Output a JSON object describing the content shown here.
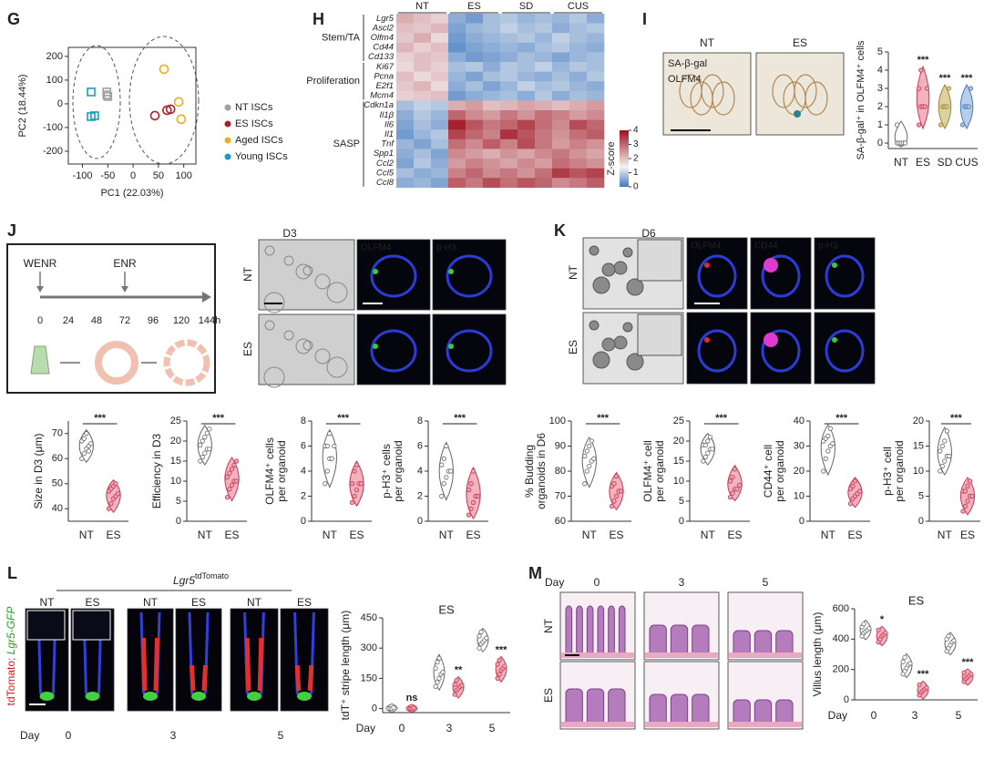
{
  "panel_labels": [
    "G",
    "H",
    "I",
    "J",
    "K",
    "L",
    "M"
  ],
  "pca": {
    "type": "scatter",
    "xlabel": "PC1 (22.03%)",
    "ylabel": "PC2 (18.44%)",
    "xlim": [
      -128,
      124
    ],
    "ylim": [
      -254,
      238
    ],
    "xticks": [
      -100,
      -50,
      0,
      50,
      100
    ],
    "yticks": [
      -200,
      -100,
      0,
      100,
      200
    ],
    "series": [
      {
        "name": "NT ISCs",
        "color": "#a0a0a0",
        "marker": "square",
        "x": [
          -52,
          -50,
          -52
        ],
        "y": [
          50,
          31,
          38
        ]
      },
      {
        "name": "ES ISCs",
        "color": "#b01e2e",
        "marker": "circle",
        "x": [
          43,
          67,
          74
        ],
        "y": [
          -50,
          -27,
          -23
        ]
      },
      {
        "name": "Aged ISCs",
        "color": "#e8b020",
        "marker": "circle",
        "x": [
          61,
          90,
          95
        ],
        "y": [
          146,
          8,
          -65
        ]
      },
      {
        "name": "Young ISCs",
        "color": "#1a9fc0",
        "marker": "square",
        "x": [
          -83,
          -83,
          -76
        ],
        "y": [
          50,
          -54,
          -50
        ]
      }
    ]
  },
  "heatmap": {
    "type": "heatmap",
    "columns": [
      "NT",
      "ES",
      "SD",
      "CUS"
    ],
    "groups": [
      {
        "name": "Stem/TA",
        "genes": [
          "Lgr5",
          "Ascl2",
          "Olfm4",
          "Cd44",
          "Cd133"
        ]
      },
      {
        "name": "Proliferation",
        "genes": [
          "Ki67",
          "Pcna",
          "E2f1",
          "Mcm4"
        ]
      },
      {
        "name": "SASP",
        "genes": [
          "Cdkn1a",
          "Il1β",
          "Il6",
          "Il1",
          "Tnf",
          "Spp1",
          "Ccl2",
          "Ccl5",
          "Ccl8"
        ]
      }
    ],
    "values": [
      [
        2.2,
        2.0,
        1.8,
        0.6,
        0.4,
        0.8,
        0.9,
        0.7,
        0.8,
        0.7,
        0.9,
        0.6
      ],
      [
        2.0,
        1.9,
        2.1,
        0.5,
        0.7,
        0.8,
        1.0,
        0.8,
        0.9,
        0.6,
        0.8,
        0.9
      ],
      [
        1.9,
        2.2,
        1.7,
        0.4,
        0.6,
        0.7,
        0.8,
        0.9,
        0.7,
        1.0,
        0.8,
        0.7
      ],
      [
        2.1,
        1.8,
        2.0,
        0.3,
        0.5,
        0.6,
        0.7,
        0.6,
        0.8,
        0.9,
        0.7,
        0.6
      ],
      [
        1.8,
        2.0,
        1.9,
        0.6,
        0.4,
        0.5,
        0.6,
        0.8,
        0.7,
        0.5,
        0.7,
        0.8
      ],
      [
        1.7,
        2.0,
        1.8,
        0.8,
        0.9,
        0.6,
        0.9,
        0.8,
        1.0,
        0.7,
        0.9,
        0.8
      ],
      [
        2.0,
        1.7,
        1.9,
        0.7,
        0.5,
        0.8,
        0.9,
        0.7,
        0.6,
        0.8,
        0.6,
        0.9
      ],
      [
        1.9,
        2.1,
        1.7,
        0.6,
        0.8,
        0.5,
        0.7,
        1.0,
        0.8,
        0.9,
        0.7,
        0.6
      ],
      [
        1.8,
        1.9,
        2.0,
        0.4,
        0.6,
        0.7,
        0.8,
        0.6,
        0.9,
        0.6,
        0.8,
        0.7
      ],
      [
        0.8,
        1.0,
        0.9,
        2.2,
        2.4,
        2.0,
        2.1,
        2.3,
        2.2,
        2.0,
        2.2,
        2.4
      ],
      [
        0.6,
        0.9,
        0.7,
        3.0,
        2.6,
        2.4,
        2.8,
        2.5,
        2.9,
        2.7,
        2.4,
        2.6
      ],
      [
        0.5,
        0.8,
        0.6,
        3.8,
        3.2,
        2.8,
        3.0,
        3.4,
        2.9,
        2.6,
        3.3,
        3.0
      ],
      [
        0.4,
        0.7,
        0.9,
        3.4,
        3.0,
        2.7,
        3.6,
        3.2,
        2.8,
        2.5,
        2.9,
        3.1
      ],
      [
        0.7,
        0.5,
        0.8,
        2.9,
        2.6,
        3.1,
        2.7,
        3.3,
        2.8,
        2.4,
        2.7,
        2.5
      ],
      [
        0.6,
        0.8,
        0.5,
        2.6,
        2.4,
        2.2,
        2.5,
        2.3,
        2.6,
        2.8,
        2.5,
        2.3
      ],
      [
        0.5,
        0.9,
        0.6,
        2.4,
        2.7,
        2.5,
        2.3,
        2.6,
        2.4,
        2.9,
        2.7,
        2.5
      ],
      [
        0.8,
        0.6,
        0.7,
        2.7,
        3.0,
        2.6,
        2.8,
        2.5,
        2.9,
        3.5,
        3.2,
        3.4
      ],
      [
        0.6,
        0.7,
        0.5,
        3.1,
        2.8,
        3.3,
        2.9,
        3.2,
        3.0,
        2.6,
        2.8,
        3.1
      ]
    ],
    "colorbar": {
      "label": "Z-score",
      "lim": [
        0,
        4
      ],
      "ticks": [
        0,
        1,
        2,
        3,
        4
      ]
    }
  },
  "images": {
    "I": {
      "labels": [
        "NT",
        "ES"
      ],
      "stains": [
        "SA-β-gal",
        "OLFM4"
      ]
    },
    "J": {
      "title": "D3",
      "rows": [
        "NT",
        "ES"
      ],
      "stains": [
        "OLFM4",
        "p-H3"
      ]
    },
    "K": {
      "title": "D6",
      "rows": [
        "NT",
        "ES"
      ],
      "stains": [
        "OLFM4",
        "CD44",
        "p-H3"
      ]
    },
    "L": {
      "title": "Lgr5",
      "title_sup": "tdTomato",
      "columns": [
        "NT",
        "ES",
        "NT",
        "ES",
        "NT",
        "ES"
      ],
      "ylabel": [
        "tdTomato; ",
        "Lgr5-GFP"
      ],
      "day_label": "Day",
      "days": [
        0,
        3,
        5
      ]
    },
    "M": {
      "rows": [
        "NT",
        "ES"
      ],
      "day_label": "Day",
      "days": [
        0,
        3,
        5
      ]
    }
  },
  "timeline": {
    "events": [
      "WENR",
      "ENR"
    ],
    "ticks": [
      "0",
      "24",
      "48",
      "72",
      "96",
      "120",
      "144h"
    ]
  },
  "violin_I": {
    "type": "violin",
    "ylabel": "SA-β-gal⁺ in OLFM4⁺ cells",
    "ylim": [
      -0.3,
      5
    ],
    "yticks": [
      0,
      1,
      2,
      3,
      4,
      5
    ],
    "groups": [
      {
        "name": "NT",
        "fill": "#ffffff",
        "stroke": "#666666",
        "values": [
          0,
          0,
          0,
          0,
          0,
          1
        ]
      },
      {
        "name": "ES",
        "fill": "#f2a3b3",
        "stroke": "#c23b55",
        "values": [
          1,
          2,
          2,
          2,
          3,
          3,
          4
        ],
        "sig": "***"
      },
      {
        "name": "SD",
        "fill": "#d9c98c",
        "stroke": "#9a8538",
        "values": [
          1,
          2,
          2,
          2,
          3
        ],
        "sig": "***"
      },
      {
        "name": "CUS",
        "fill": "#a9c5e6",
        "stroke": "#4d79b5",
        "values": [
          1,
          2,
          2,
          2,
          3
        ],
        "sig": "***"
      }
    ]
  },
  "violin_colors": [
    {
      "fill": "#ffffff",
      "stroke": "#666666"
    },
    {
      "fill": "#f2a3b3",
      "stroke": "#c23b55"
    }
  ],
  "paired": [
    {
      "type": "violin",
      "ylabel": [
        "Size in D3 (μm)"
      ],
      "ylim": [
        35,
        75
      ],
      "yticks": [
        40,
        50,
        60,
        70
      ],
      "groups": [
        "NT",
        "ES"
      ],
      "series": [
        [
          60,
          62,
          64,
          65,
          66,
          67,
          68,
          70,
          63
        ],
        [
          40,
          42,
          44,
          45,
          46,
          47,
          48,
          49,
          50
        ]
      ],
      "sig": "***"
    },
    {
      "type": "violin",
      "ylabel": [
        "Efficiency in D3"
      ],
      "ylim": [
        0,
        25
      ],
      "yticks": [
        0,
        5,
        10,
        15,
        20,
        25
      ],
      "groups": [
        "NT",
        "ES"
      ],
      "series": [
        [
          15,
          16,
          17,
          18,
          18,
          19,
          20,
          21,
          22,
          23
        ],
        [
          6,
          8,
          9,
          10,
          10,
          11,
          12,
          13,
          14,
          15
        ]
      ],
      "sig": "***"
    },
    {
      "type": "violin",
      "ylabel": [
        "OLFM4⁺ cells",
        "per organoid"
      ],
      "ylim": [
        0,
        8
      ],
      "yticks": [
        0,
        2,
        4,
        6,
        8
      ],
      "groups": [
        "NT",
        "ES"
      ],
      "series": [
        [
          3,
          4,
          5,
          5,
          6,
          6,
          6,
          7
        ],
        [
          1.5,
          2,
          2.5,
          3,
          3,
          3,
          4,
          4.5
        ]
      ],
      "sig": "***"
    },
    {
      "type": "violin",
      "ylabel": [
        "p-H3⁺ cells",
        "per organoid"
      ],
      "ylim": [
        0,
        8
      ],
      "yticks": [
        0,
        2,
        4,
        6,
        8
      ],
      "groups": [
        "NT",
        "ES"
      ],
      "series": [
        [
          2,
          3,
          3.5,
          4,
          4,
          4.5,
          5,
          6
        ],
        [
          0.5,
          1,
          1.5,
          2,
          2,
          2.5,
          3,
          4
        ]
      ],
      "sig": "***"
    },
    {
      "type": "violin",
      "ylabel": [
        "% Budding",
        "organoids in D6"
      ],
      "ylim": [
        60,
        100
      ],
      "yticks": [
        60,
        70,
        80,
        90,
        100
      ],
      "groups": [
        "NT",
        "ES"
      ],
      "series": [
        [
          75,
          80,
          82,
          84,
          85,
          86,
          88,
          90,
          92
        ],
        [
          66,
          68,
          70,
          72,
          72,
          74,
          75,
          78
        ]
      ],
      "sig": "***"
    },
    {
      "type": "violin",
      "ylabel": [
        "OLFM4⁺ cell",
        "per organoid"
      ],
      "ylim": [
        0,
        25
      ],
      "yticks": [
        0,
        5,
        10,
        15,
        20,
        25
      ],
      "groups": [
        "NT",
        "ES"
      ],
      "series": [
        [
          15,
          16,
          17,
          18,
          18,
          19,
          19,
          20,
          21
        ],
        [
          6,
          7,
          8,
          8,
          9,
          10,
          11,
          13
        ]
      ],
      "sig": "***"
    },
    {
      "type": "violin",
      "ylabel": [
        "CD44⁺ cell",
        "per organoid"
      ],
      "ylim": [
        0,
        40
      ],
      "yticks": [
        0,
        10,
        20,
        30,
        40
      ],
      "groups": [
        "NT",
        "ES"
      ],
      "series": [
        [
          20,
          25,
          28,
          30,
          31,
          32,
          33,
          34,
          37
        ],
        [
          7,
          9,
          10,
          11,
          12,
          13,
          14,
          16
        ]
      ],
      "sig": "***"
    },
    {
      "type": "violin",
      "ylabel": [
        "p-H3⁺ cell",
        "per organoid"
      ],
      "ylim": [
        0,
        20
      ],
      "yticks": [
        0,
        5,
        10,
        15,
        20
      ],
      "groups": [
        "NT",
        "ES"
      ],
      "series": [
        [
          10,
          11,
          12,
          13,
          13,
          14,
          15,
          16,
          18
        ],
        [
          2,
          3,
          4,
          5,
          5,
          6,
          6,
          7,
          8
        ]
      ],
      "sig": "***"
    }
  ],
  "day_plots": [
    {
      "type": "violin",
      "title": "ES",
      "ylabel": "tdT⁺ stripe length (μm)",
      "ylim": [
        -20,
        450
      ],
      "yticks": [
        0,
        150,
        300,
        450
      ],
      "day_label": "Day",
      "days": [
        0,
        3,
        5
      ],
      "series": [
        [
          [
            0,
            0,
            0,
            5
          ],
          [
            110,
            130,
            150,
            170,
            180,
            200,
            230,
            250
          ],
          [
            300,
            320,
            330,
            340,
            350,
            360,
            380
          ]
        ],
        [
          [
            0,
            0,
            0,
            3
          ],
          [
            70,
            90,
            100,
            110,
            115,
            120,
            140
          ],
          [
            150,
            170,
            190,
            200,
            210,
            220,
            240
          ]
        ]
      ],
      "sig": [
        "ns",
        "**",
        "***"
      ]
    },
    {
      "type": "violin",
      "title": "ES",
      "ylabel": "Villus length (μm)",
      "ylim": [
        0,
        600
      ],
      "yticks": [
        0,
        200,
        400,
        600
      ],
      "day_label": "Day",
      "days": [
        0,
        3,
        5
      ],
      "series": [
        [
          [
            420,
            440,
            450,
            460,
            470,
            480,
            500
          ],
          [
            170,
            190,
            210,
            230,
            240,
            250,
            280
          ],
          [
            320,
            340,
            360,
            380,
            390,
            400,
            420
          ]
        ],
        [
          [
            380,
            400,
            420,
            430,
            440,
            460
          ],
          [
            30,
            50,
            60,
            70,
            80,
            100
          ],
          [
            120,
            140,
            150,
            160,
            170,
            180
          ]
        ]
      ],
      "sig": [
        "*",
        "***",
        "***"
      ]
    }
  ]
}
